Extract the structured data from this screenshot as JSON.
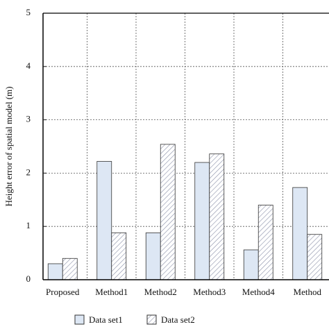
{
  "chart_data": {
    "type": "bar",
    "y_label": "Height error of spatial model (m)",
    "categories": [
      "Proposed",
      "Method1",
      "Method2",
      "Method3",
      "Method4",
      "Method"
    ],
    "series": [
      {
        "name": "Data set1",
        "color": "#dde7f4",
        "pattern": "solid",
        "values": [
          0.3,
          2.22,
          0.88,
          2.2,
          0.56,
          1.73
        ]
      },
      {
        "name": "Data set2",
        "color": "#8a90a8",
        "pattern": "hatch",
        "values": [
          0.4,
          0.88,
          2.54,
          2.36,
          1.4,
          0.85
        ]
      }
    ],
    "ylim": [
      0,
      5
    ],
    "yticks": [
      0,
      1,
      2,
      3,
      4,
      5
    ],
    "grid": true
  }
}
